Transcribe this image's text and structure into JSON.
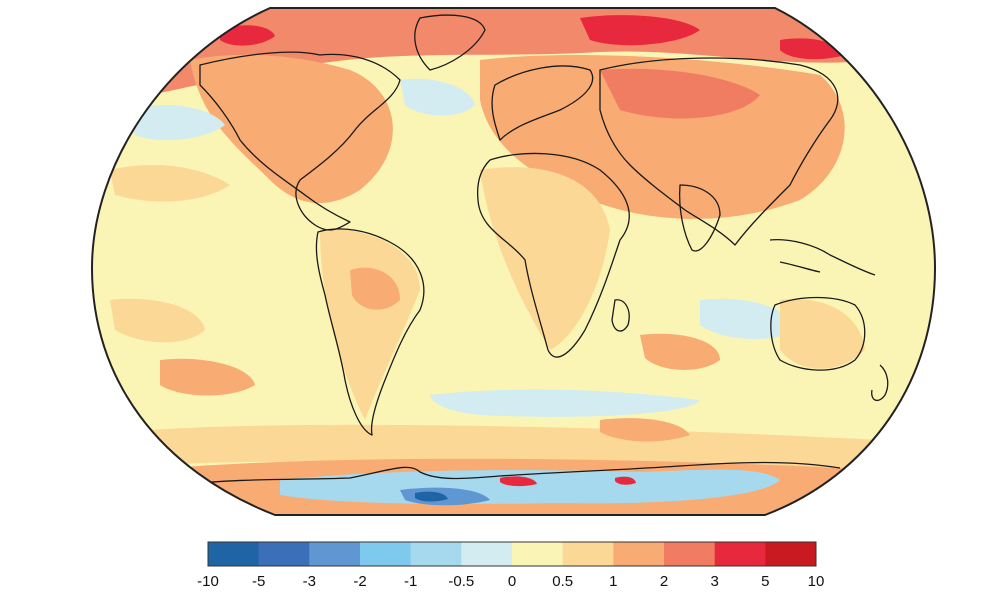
{
  "map": {
    "projection": "Robinson",
    "colors": {
      "background": "#fbf5b5",
      "frame": "#222222"
    }
  },
  "colorbar": {
    "labels": [
      "-10",
      "-5",
      "-3",
      "-2",
      "-1",
      "-0.5",
      "0",
      "0.5",
      "1",
      "2",
      "3",
      "5",
      "10"
    ],
    "colors": [
      "#1f65a6",
      "#3b6fb8",
      "#5f97d2",
      "#7ec9ee",
      "#a6d9ee",
      "#d2ecf1",
      "#fbf5b5",
      "#fcd896",
      "#f8ab72",
      "#f07d62",
      "#e8283c",
      "#c91a22"
    ]
  }
}
